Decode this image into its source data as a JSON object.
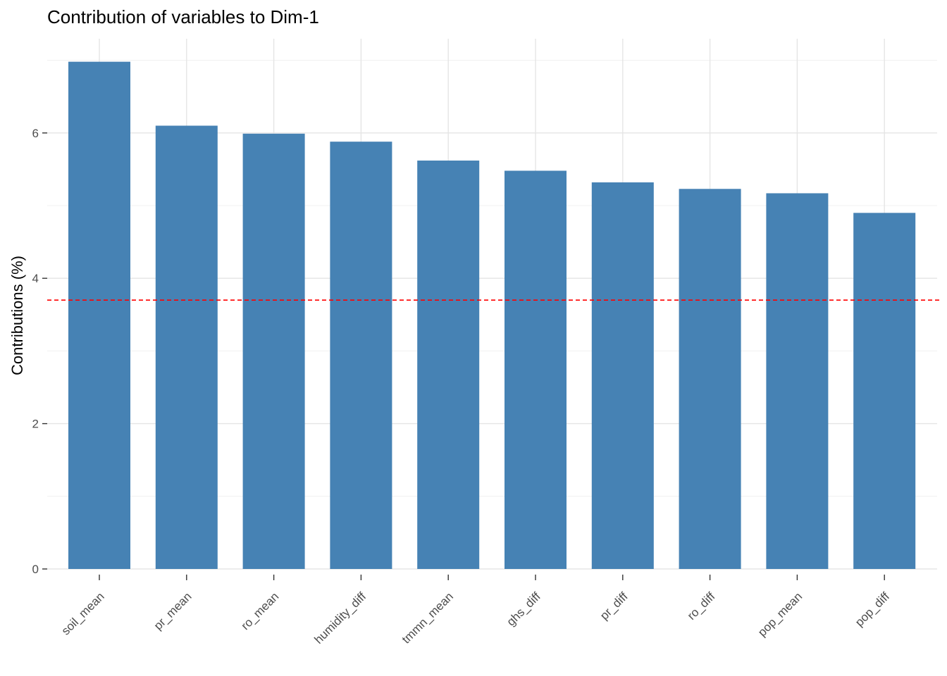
{
  "chart_data": {
    "type": "bar",
    "title": "Contribution of variables to Dim-1",
    "xlabel": "",
    "ylabel": "Contributions (%)",
    "categories": [
      "soil_mean",
      "pr_mean",
      "ro_mean",
      "humidity_diff",
      "tmmn_mean",
      "ghs_diff",
      "pr_diff",
      "ro_diff",
      "pop_mean",
      "pop_diff"
    ],
    "values": [
      6.98,
      6.1,
      5.99,
      5.88,
      5.62,
      5.48,
      5.32,
      5.23,
      5.17,
      4.9
    ],
    "ylim": [
      0,
      7.0
    ],
    "yticks": [
      0,
      2,
      4,
      6
    ],
    "reference_line": 3.7,
    "bar_color": "#4682b4",
    "reference_line_color": "#ff0000",
    "grid": true
  }
}
